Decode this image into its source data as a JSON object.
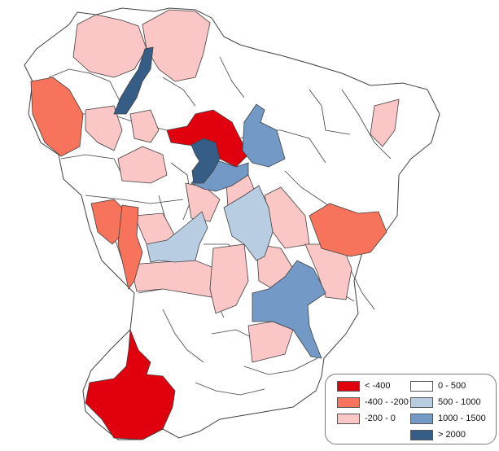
{
  "map": {
    "region_fill_default": "#ffffff",
    "border_color": "#404040"
  },
  "legend": {
    "items": [
      {
        "label": "< -400",
        "color": "#e0000e"
      },
      {
        "label": "-400 - -200",
        "color": "#f8735b"
      },
      {
        "label": "-200 - 0",
        "color": "#fbc6c6"
      },
      {
        "label": "0 - 500",
        "color": "#ffffff"
      },
      {
        "label": "500 - 1000",
        "color": "#b8cde2"
      },
      {
        "label": "1000 - 1500",
        "color": "#7399c6"
      },
      {
        "label": "> 2000",
        "color": "#365d86"
      }
    ]
  }
}
